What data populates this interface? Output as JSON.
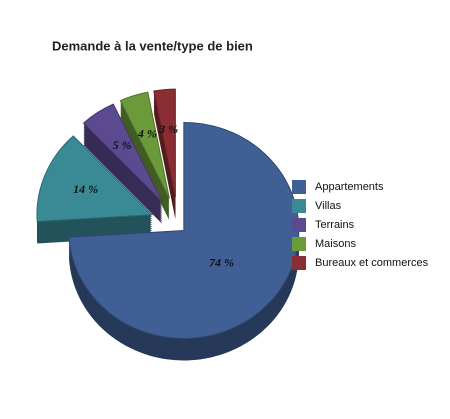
{
  "chart_data": {
    "type": "pie",
    "title": "Demande à la vente/type de bien",
    "categories": [
      "Appartements",
      "Villas",
      "Terrains",
      "Maisons",
      "Bureaux et commerces"
    ],
    "values": [
      74,
      14,
      5,
      4,
      3
    ],
    "value_labels": [
      "74 %",
      "14 %",
      "5 %",
      "4 %",
      "3 %"
    ],
    "colors": [
      "#3f5f95",
      "#3a8a96",
      "#5b4a8f",
      "#6a9a3a",
      "#8a2e34"
    ],
    "legend": "right"
  }
}
